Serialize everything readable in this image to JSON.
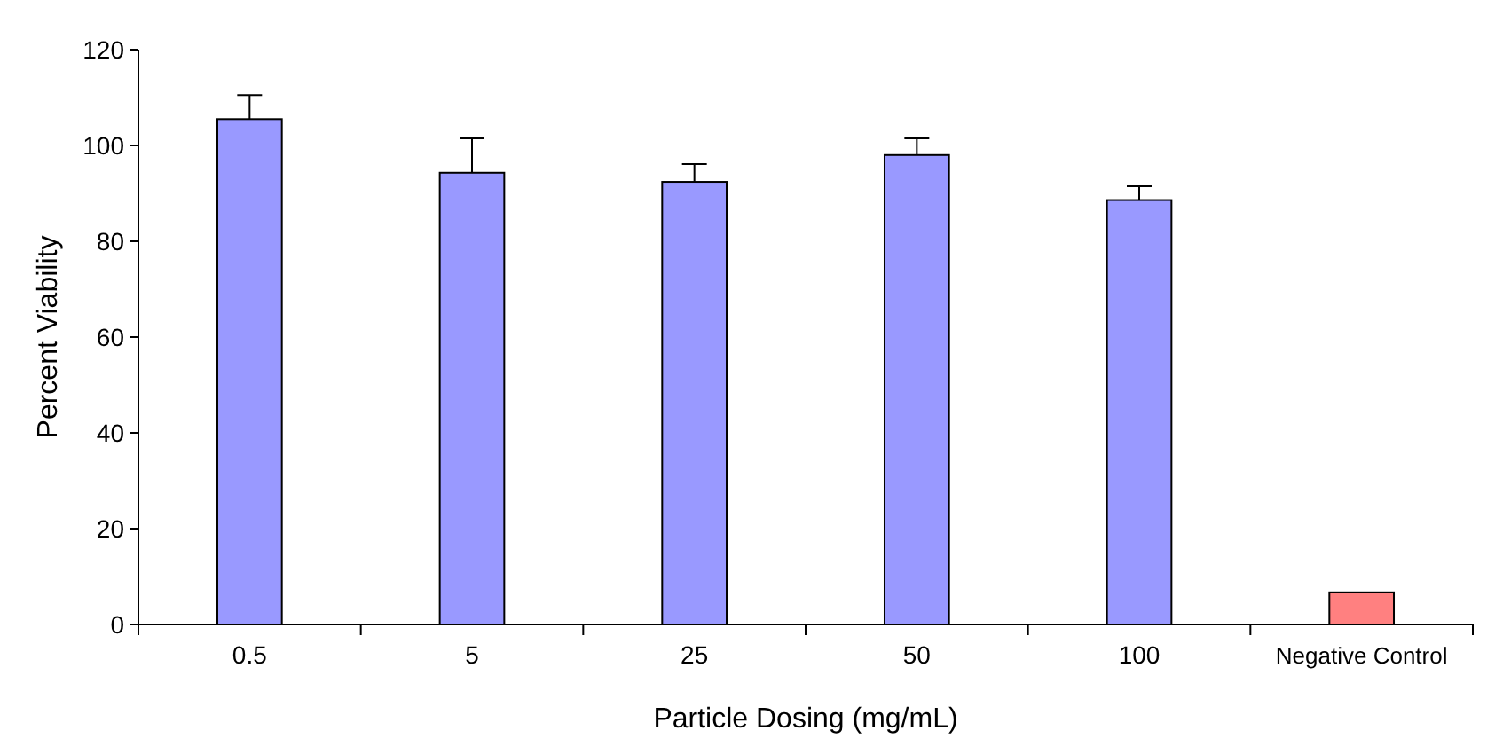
{
  "chart_data": {
    "type": "bar",
    "xlabel": "Particle Dosing (mg/mL)",
    "ylabel": "Percent Viability",
    "categories": [
      "0.5",
      "5",
      "25",
      "50",
      "100",
      "Negative Control"
    ],
    "values": [
      105.5,
      94.3,
      92.4,
      98,
      88.6,
      6.7
    ],
    "errors": [
      [
        105.5,
        110.5
      ],
      [
        94.3,
        101.5
      ],
      [
        92.4,
        96.1
      ],
      [
        98,
        101.5
      ],
      [
        88.6,
        91.5
      ],
      null
    ],
    "colors": [
      "#9999ff",
      "#9999ff",
      "#9999ff",
      "#9999ff",
      "#9999ff",
      "#ff8080"
    ],
    "ylim": [
      0,
      120
    ],
    "yticks": [
      0,
      20,
      40,
      60,
      80,
      100,
      120
    ]
  }
}
